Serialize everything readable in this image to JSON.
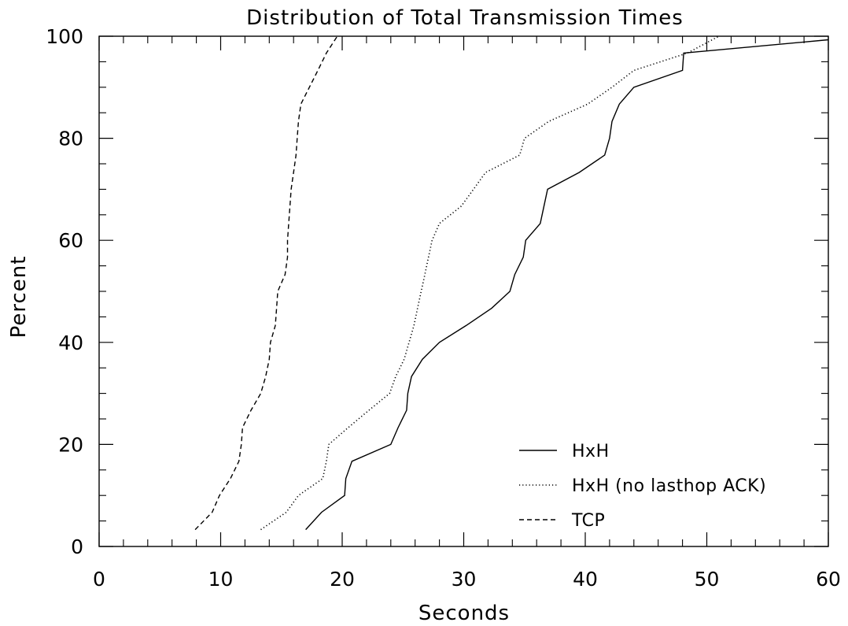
{
  "chart_data": {
    "type": "line",
    "title": "Distribution of Total Transmission Times",
    "xlabel": "Seconds",
    "ylabel": "Percent",
    "xlim": [
      0,
      60
    ],
    "ylim": [
      0,
      100
    ],
    "x_ticks": [
      0,
      10,
      20,
      30,
      40,
      50,
      60
    ],
    "y_ticks": [
      0,
      20,
      40,
      60,
      80,
      100
    ],
    "grid": false,
    "legend_position": "bottom-right",
    "series": [
      {
        "name": "HxH",
        "style": "solid",
        "color": "#000000",
        "points": [
          [
            17.0,
            3.3
          ],
          [
            18.3,
            6.7
          ],
          [
            20.2,
            10.0
          ],
          [
            20.3,
            13.3
          ],
          [
            20.8,
            16.7
          ],
          [
            24.0,
            20.0
          ],
          [
            24.6,
            23.3
          ],
          [
            25.3,
            26.7
          ],
          [
            25.4,
            30.0
          ],
          [
            25.7,
            33.3
          ],
          [
            26.6,
            36.7
          ],
          [
            28.0,
            40.0
          ],
          [
            30.2,
            43.3
          ],
          [
            32.3,
            46.7
          ],
          [
            33.8,
            50.0
          ],
          [
            34.2,
            53.3
          ],
          [
            34.9,
            56.7
          ],
          [
            35.1,
            60.0
          ],
          [
            36.3,
            63.3
          ],
          [
            36.6,
            66.7
          ],
          [
            36.9,
            70.0
          ],
          [
            39.5,
            73.3
          ],
          [
            41.6,
            76.7
          ],
          [
            42.0,
            80.0
          ],
          [
            42.2,
            83.3
          ],
          [
            42.8,
            86.7
          ],
          [
            44.0,
            90.0
          ],
          [
            48.0,
            93.3
          ],
          [
            48.1,
            96.7
          ],
          [
            60.0,
            99.3
          ]
        ]
      },
      {
        "name": "HxH (no lasthop ACK)",
        "style": "dotted",
        "color": "#000000",
        "points": [
          [
            13.3,
            3.3
          ],
          [
            15.4,
            6.7
          ],
          [
            16.4,
            10.0
          ],
          [
            18.4,
            13.3
          ],
          [
            18.7,
            16.7
          ],
          [
            18.9,
            20.0
          ],
          [
            20.5,
            23.3
          ],
          [
            22.2,
            26.7
          ],
          [
            23.9,
            30.0
          ],
          [
            24.4,
            33.3
          ],
          [
            25.1,
            36.7
          ],
          [
            25.5,
            40.0
          ],
          [
            25.9,
            43.3
          ],
          [
            26.2,
            46.7
          ],
          [
            26.5,
            50.0
          ],
          [
            26.8,
            53.3
          ],
          [
            27.1,
            56.7
          ],
          [
            27.4,
            60.0
          ],
          [
            28.0,
            63.3
          ],
          [
            29.8,
            66.7
          ],
          [
            30.8,
            70.0
          ],
          [
            31.8,
            73.3
          ],
          [
            34.6,
            76.7
          ],
          [
            35.0,
            80.0
          ],
          [
            37.0,
            83.3
          ],
          [
            40.2,
            86.7
          ],
          [
            42.2,
            90.0
          ],
          [
            44.0,
            93.3
          ],
          [
            48.4,
            96.7
          ],
          [
            51.0,
            100.0
          ]
        ]
      },
      {
        "name": "TCP",
        "style": "dashed",
        "color": "#000000",
        "points": [
          [
            7.9,
            3.3
          ],
          [
            9.3,
            6.7
          ],
          [
            9.9,
            10.0
          ],
          [
            10.8,
            13.3
          ],
          [
            11.5,
            16.7
          ],
          [
            11.7,
            20.0
          ],
          [
            11.8,
            23.3
          ],
          [
            12.5,
            26.7
          ],
          [
            13.3,
            30.0
          ],
          [
            13.7,
            33.3
          ],
          [
            14.0,
            36.7
          ],
          [
            14.1,
            40.0
          ],
          [
            14.5,
            43.3
          ],
          [
            14.6,
            46.7
          ],
          [
            14.7,
            50.0
          ],
          [
            15.3,
            53.3
          ],
          [
            15.5,
            56.7
          ],
          [
            15.5,
            60.0
          ],
          [
            15.6,
            63.3
          ],
          [
            15.7,
            66.7
          ],
          [
            15.8,
            70.0
          ],
          [
            16.0,
            73.3
          ],
          [
            16.2,
            76.7
          ],
          [
            16.3,
            80.0
          ],
          [
            16.4,
            83.3
          ],
          [
            16.6,
            86.7
          ],
          [
            17.3,
            90.0
          ],
          [
            18.0,
            93.3
          ],
          [
            18.7,
            96.7
          ],
          [
            19.6,
            100.0
          ]
        ]
      }
    ]
  }
}
